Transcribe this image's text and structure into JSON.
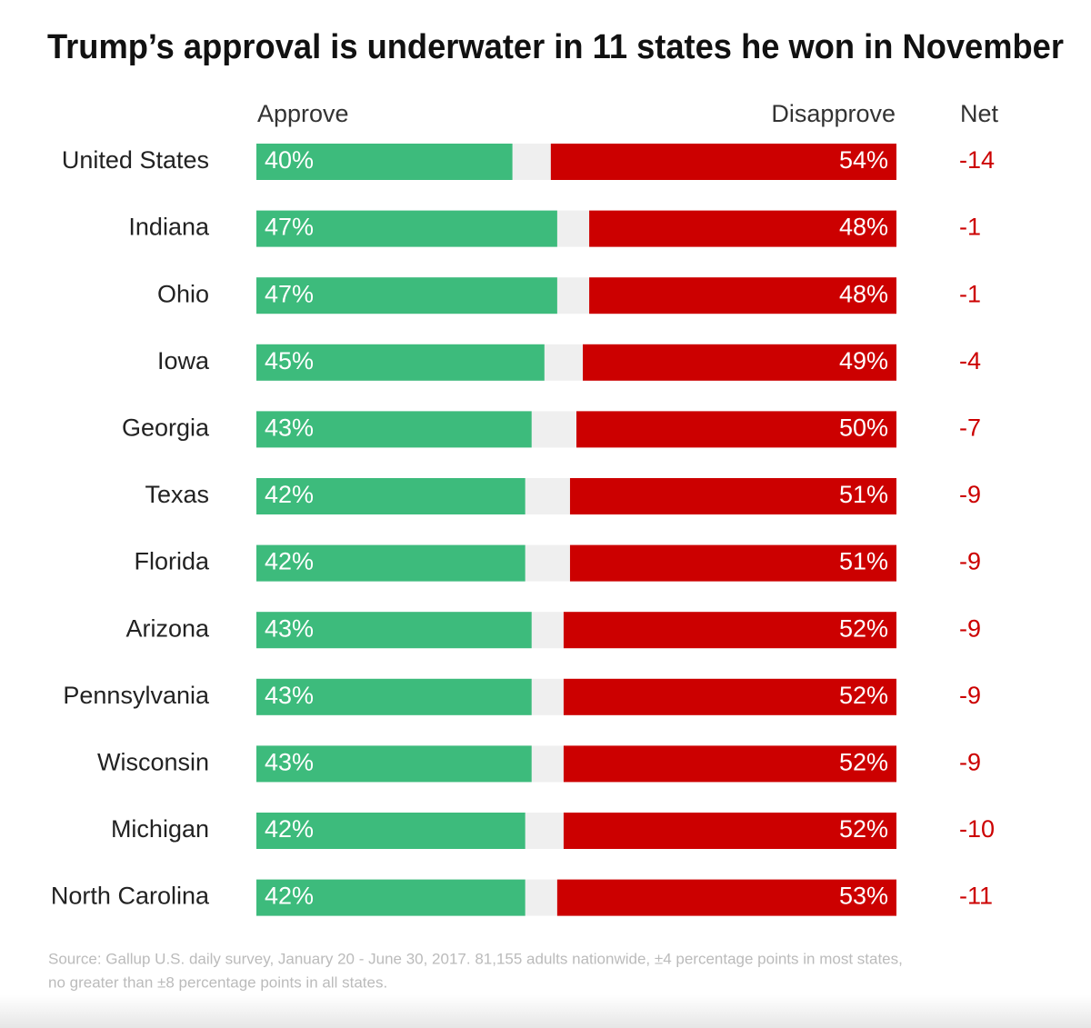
{
  "chart_data": {
    "type": "bar",
    "orientation": "horizontal",
    "split": true,
    "title": "Trump’s approval is underwater in 11 states he won in November",
    "categories": [
      "United States",
      "Indiana",
      "Ohio",
      "Iowa",
      "Georgia",
      "Texas",
      "Florida",
      "Arizona",
      "Pennsylvania",
      "Wisconsin",
      "Michigan",
      "North Carolina"
    ],
    "xlim": [
      0,
      100
    ],
    "series": [
      {
        "name": "Approve",
        "color": "#3dbb7c",
        "values": [
          40,
          47,
          47,
          45,
          43,
          42,
          42,
          43,
          43,
          43,
          42,
          42
        ],
        "value_labels": [
          "40%",
          "47%",
          "47%",
          "45%",
          "43%",
          "42%",
          "42%",
          "43%",
          "43%",
          "43%",
          "42%",
          "42%"
        ]
      },
      {
        "name": "Disapprove",
        "color": "#cc0000",
        "values": [
          54,
          48,
          48,
          49,
          50,
          51,
          51,
          52,
          52,
          52,
          52,
          53
        ],
        "value_labels": [
          "54%",
          "48%",
          "48%",
          "49%",
          "50%",
          "51%",
          "51%",
          "52%",
          "52%",
          "52%",
          "52%",
          "53%"
        ]
      }
    ],
    "net": {
      "name": "Net",
      "color": "#cc0000",
      "values": [
        -14,
        -1,
        -1,
        -4,
        -7,
        -9,
        -9,
        -9,
        -9,
        -9,
        -10,
        -11
      ]
    },
    "source": [
      "Source: Gallup U.S. daily survey, January 20 - June 30, 2017. 81,155 adults nationwide, ±4 percentage points in most states,",
      "no greater than ±8 percentage points in all states."
    ]
  }
}
